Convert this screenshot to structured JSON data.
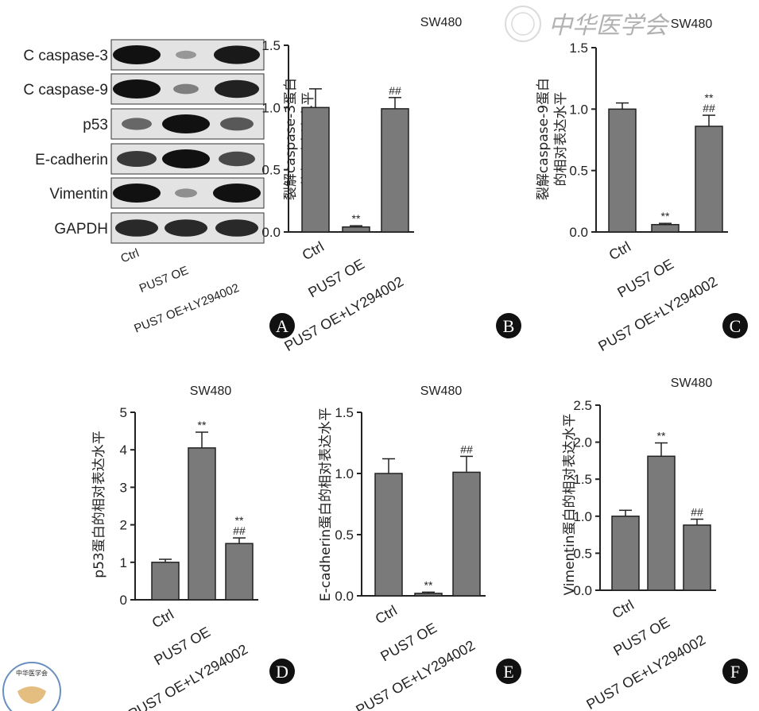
{
  "watermark": "中华医学会",
  "logo_text": "中华医学会",
  "blot": {
    "lanes": [
      "Ctrl",
      "PUS7 OE",
      "PUS7 OE+LY294002"
    ],
    "rows": [
      {
        "label": "C caspase-3",
        "intensity": [
          1.0,
          0.15,
          0.95
        ]
      },
      {
        "label": "C caspase-9",
        "intensity": [
          1.0,
          0.3,
          0.9
        ]
      },
      {
        "label": "p53",
        "intensity": [
          0.45,
          1.0,
          0.55
        ]
      },
      {
        "label": "E-cadherin",
        "intensity": [
          0.75,
          1.0,
          0.65
        ]
      },
      {
        "label": "Vimentin",
        "intensity": [
          1.0,
          0.2,
          1.0
        ]
      },
      {
        "label": "GAPDH",
        "intensity": [
          0.85,
          0.85,
          0.85
        ]
      }
    ],
    "panel_letter": "A"
  },
  "bar_color": "#7a7a7a",
  "chart_data": [
    {
      "panel_letter": "B",
      "type": "bar",
      "title": "SW480",
      "ylabel": [
        "裂解caspase-3蛋白",
        "的相对表达水平"
      ],
      "categories": [
        "Ctrl",
        "PUS7 OE",
        "PUS7 OE+LY294002"
      ],
      "values": [
        1.0,
        0.04,
        0.99
      ],
      "errors": [
        0.15,
        0.01,
        0.09
      ],
      "annotations": [
        [],
        [
          "**"
        ],
        [
          "##"
        ]
      ],
      "ylim": [
        0,
        1.5
      ],
      "yticks": [
        "0.0",
        "0.5",
        "1.0",
        "1.5"
      ]
    },
    {
      "panel_letter": "C",
      "type": "bar",
      "title": "SW480",
      "ylabel": [
        "裂解caspase-9蛋白",
        "的相对表达水平"
      ],
      "categories": [
        "Ctrl",
        "PUS7 OE",
        "PUS7 OE+LY294002"
      ],
      "values": [
        1.0,
        0.06,
        0.86
      ],
      "errors": [
        0.05,
        0.01,
        0.09
      ],
      "annotations": [
        [],
        [
          "**"
        ],
        [
          "**",
          "##"
        ]
      ],
      "ylim": [
        0,
        1.5
      ],
      "yticks": [
        "0.0",
        "0.5",
        "1.0",
        "1.5"
      ]
    },
    {
      "panel_letter": "D",
      "type": "bar",
      "title": "SW480",
      "ylabel": [
        "p53蛋白的相对表达水平"
      ],
      "categories": [
        "Ctrl",
        "PUS7 OE",
        "PUS7 OE+LY294002"
      ],
      "values": [
        1.0,
        4.05,
        1.5
      ],
      "errors": [
        0.08,
        0.42,
        0.15
      ],
      "annotations": [
        [],
        [
          "**"
        ],
        [
          "**",
          "##"
        ]
      ],
      "ylim": [
        0,
        5
      ],
      "yticks": [
        "0",
        "1",
        "2",
        "3",
        "4",
        "5"
      ]
    },
    {
      "panel_letter": "E",
      "type": "bar",
      "title": "SW480",
      "ylabel": [
        "E-cadherin蛋白的相对表达水平"
      ],
      "categories": [
        "Ctrl",
        "PUS7 OE",
        "PUS7 OE+LY294002"
      ],
      "values": [
        1.0,
        0.02,
        1.01
      ],
      "errors": [
        0.12,
        0.01,
        0.13
      ],
      "annotations": [
        [],
        [
          "**"
        ],
        [
          "##"
        ]
      ],
      "ylim": [
        0,
        1.5
      ],
      "yticks": [
        "0.0",
        "0.5",
        "1.0",
        "1.5"
      ]
    },
    {
      "panel_letter": "F",
      "type": "bar",
      "title": "SW480",
      "ylabel": [
        "Vimentin蛋白的相对表达水平"
      ],
      "categories": [
        "Ctrl",
        "PUS7 OE",
        "PUS7 OE+LY294002"
      ],
      "values": [
        1.0,
        1.81,
        0.88
      ],
      "errors": [
        0.08,
        0.18,
        0.08
      ],
      "annotations": [
        [],
        [
          "**"
        ],
        [
          "##"
        ]
      ],
      "ylim": [
        0,
        2.5
      ],
      "yticks": [
        "0.0",
        "0.5",
        "1.0",
        "1.5",
        "2.0",
        "2.5"
      ]
    }
  ]
}
